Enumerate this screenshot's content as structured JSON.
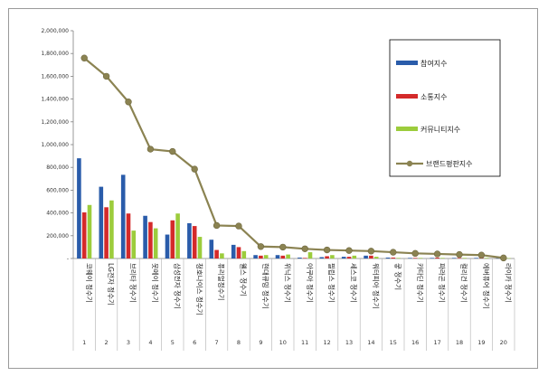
{
  "chart_data": {
    "type": "bar",
    "categories": [
      "코웨이 정수기",
      "LG전자 정수기",
      "브리타 정수기",
      "웃메이 정수기",
      "삼성전자 정수기",
      "청호나이스 정수기",
      "퓨리얼정수기",
      "웰스 정수기",
      "현대큐밍 정수기",
      "위닉스 정수기",
      "아쿠아 정수기",
      "필립스 정수기",
      "세스코 정수기",
      "워터피아 정수기",
      "쿻 정수기",
      "카타딘 정수기",
      "파라곤 정수기",
      "컬리건 정수기",
      "에버퓨어 정수기",
      "라이카 정수기"
    ],
    "ranks": [
      "1",
      "2",
      "3",
      "4",
      "5",
      "6",
      "7",
      "8",
      "9",
      "10",
      "11",
      "12",
      "13",
      "14",
      "15",
      "16",
      "17",
      "18",
      "19",
      "20"
    ],
    "series": [
      {
        "name": "참여지수",
        "color": "#2a5caa",
        "values": [
          880000,
          630000,
          735000,
          375000,
          210000,
          310000,
          165000,
          120000,
          30000,
          30000,
          8000,
          12000,
          15000,
          25000,
          8000,
          5000,
          5000,
          5000,
          5000,
          3000
        ]
      },
      {
        "name": "소통지수",
        "color": "#d42a2a",
        "values": [
          405000,
          450000,
          395000,
          320000,
          335000,
          285000,
          75000,
          100000,
          25000,
          25000,
          5000,
          20000,
          15000,
          25000,
          8000,
          5000,
          8000,
          5000,
          5000,
          3000
        ]
      },
      {
        "name": "커뮤니티지수",
        "color": "#9ccc3c",
        "values": [
          470000,
          510000,
          245000,
          265000,
          395000,
          190000,
          45000,
          65000,
          30000,
          35000,
          55000,
          30000,
          25000,
          15000,
          5000,
          5000,
          5000,
          5000,
          5000,
          3000
        ]
      },
      {
        "name": "브랜드평판지수",
        "color": "#8b8352",
        "type": "line",
        "values": [
          1760000,
          1600000,
          1375000,
          960000,
          940000,
          785000,
          290000,
          285000,
          105000,
          100000,
          85000,
          75000,
          70000,
          65000,
          55000,
          45000,
          40000,
          35000,
          30000,
          5000
        ]
      }
    ],
    "ylim": [
      0,
      2000000
    ],
    "yticks": [
      "2,000,000",
      "1,800,000",
      "1,600,000",
      "1,400,000",
      "1,200,000",
      "1,000,000",
      "800,000",
      "600,000",
      "400,000",
      "200,000",
      "-"
    ],
    "legend": "right",
    "grid": false
  }
}
